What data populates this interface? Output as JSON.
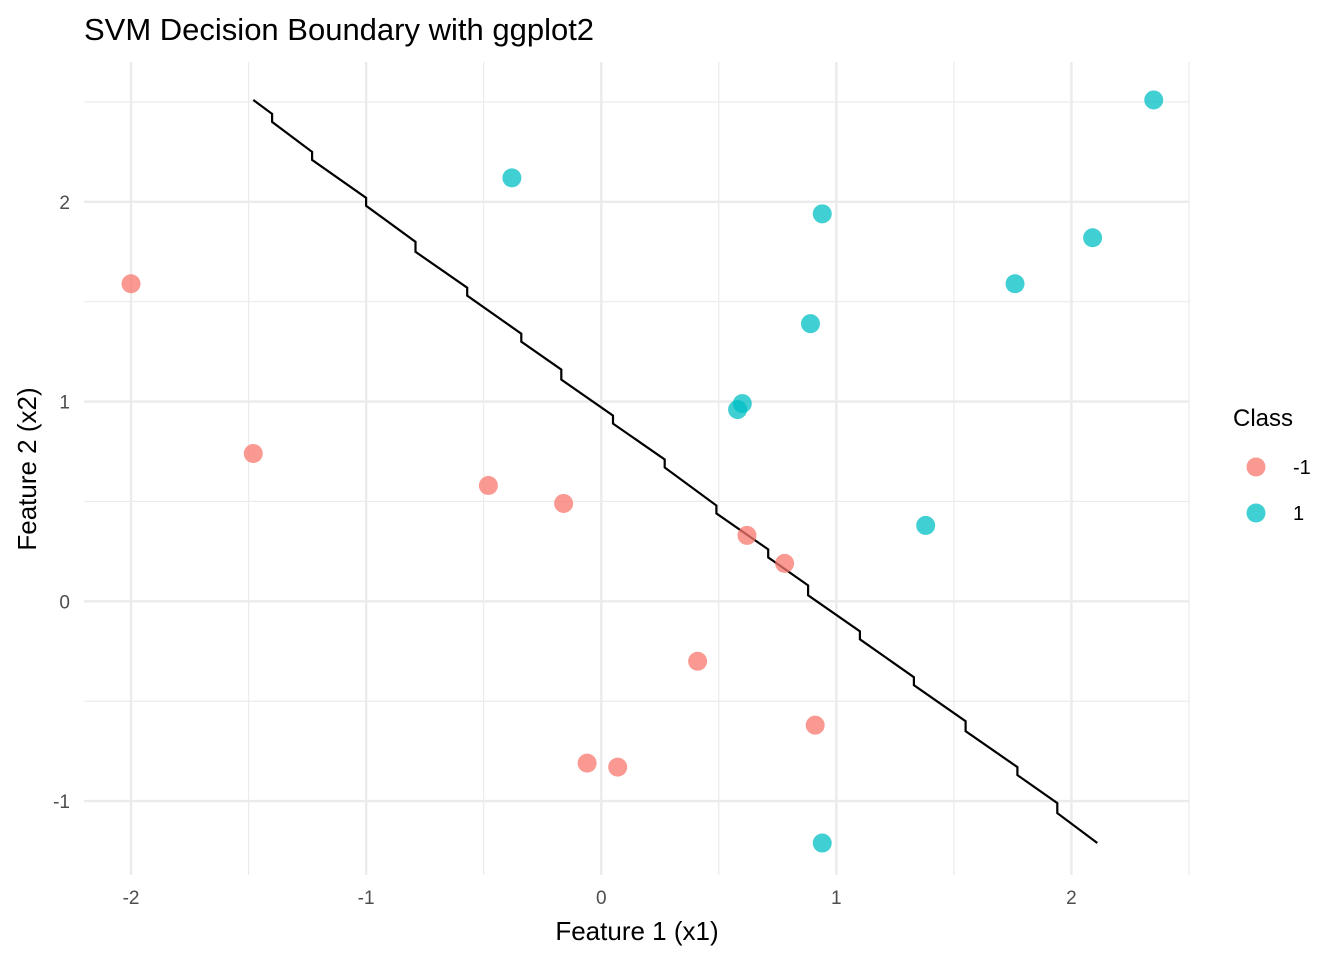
{
  "chart_data": {
    "type": "scatter",
    "title": "SVM Decision Boundary with ggplot2",
    "xlabel": "Feature 1 (x1)",
    "ylabel": "Feature 2 (x2)",
    "xlim": [
      -2.2,
      2.5
    ],
    "ylim": [
      -1.37,
      2.7
    ],
    "x_ticks": [
      -2,
      -1,
      0,
      1,
      2
    ],
    "x_tick_labels": [
      "-2",
      "-1",
      "0",
      "1",
      "2"
    ],
    "y_ticks": [
      -1,
      0,
      1,
      2
    ],
    "y_tick_labels": [
      "-1",
      "0",
      "1",
      "2"
    ],
    "grid": true,
    "legend": {
      "title": "Class",
      "position": "right",
      "entries": [
        {
          "label": "-1",
          "color": "#F8766D"
        },
        {
          "label": "1",
          "color": "#00BFC4"
        }
      ]
    },
    "series": [
      {
        "class": "-1",
        "color": "#F8766D",
        "points": [
          {
            "x": -2.0,
            "y": 1.59
          },
          {
            "x": -1.48,
            "y": 0.74
          },
          {
            "x": -0.48,
            "y": 0.58
          },
          {
            "x": -0.16,
            "y": 0.49
          },
          {
            "x": 0.62,
            "y": 0.33
          },
          {
            "x": 0.78,
            "y": 0.19
          },
          {
            "x": 0.41,
            "y": -0.3
          },
          {
            "x": 0.91,
            "y": -0.62
          },
          {
            "x": -0.06,
            "y": -0.81
          },
          {
            "x": 0.07,
            "y": -0.83
          }
        ]
      },
      {
        "class": "1",
        "color": "#00BFC4",
        "points": [
          {
            "x": 2.35,
            "y": 2.51
          },
          {
            "x": -0.38,
            "y": 2.12
          },
          {
            "x": 0.94,
            "y": 1.94
          },
          {
            "x": 2.09,
            "y": 1.82
          },
          {
            "x": 1.76,
            "y": 1.59
          },
          {
            "x": 0.89,
            "y": 1.39
          },
          {
            "x": 0.6,
            "y": 0.99
          },
          {
            "x": 0.58,
            "y": 0.96
          },
          {
            "x": 1.38,
            "y": 0.38
          },
          {
            "x": 0.94,
            "y": -1.21
          }
        ]
      }
    ],
    "decision_boundary": {
      "color": "#000000",
      "points": [
        {
          "x": -1.48,
          "y": 2.51
        },
        {
          "x": -1.4,
          "y": 2.44
        },
        {
          "x": -1.4,
          "y": 2.4
        },
        {
          "x": -1.23,
          "y": 2.25
        },
        {
          "x": -1.23,
          "y": 2.21
        },
        {
          "x": -1.0,
          "y": 2.02
        },
        {
          "x": -1.0,
          "y": 1.98
        },
        {
          "x": -0.79,
          "y": 1.8
        },
        {
          "x": -0.79,
          "y": 1.75
        },
        {
          "x": -0.57,
          "y": 1.57
        },
        {
          "x": -0.57,
          "y": 1.53
        },
        {
          "x": -0.34,
          "y": 1.34
        },
        {
          "x": -0.34,
          "y": 1.3
        },
        {
          "x": -0.17,
          "y": 1.16
        },
        {
          "x": -0.17,
          "y": 1.11
        },
        {
          "x": 0.05,
          "y": 0.93
        },
        {
          "x": 0.05,
          "y": 0.89
        },
        {
          "x": 0.27,
          "y": 0.71
        },
        {
          "x": 0.27,
          "y": 0.67
        },
        {
          "x": 0.49,
          "y": 0.48
        },
        {
          "x": 0.49,
          "y": 0.44
        },
        {
          "x": 0.71,
          "y": 0.26
        },
        {
          "x": 0.71,
          "y": 0.22
        },
        {
          "x": 0.88,
          "y": 0.08
        },
        {
          "x": 0.88,
          "y": 0.03
        },
        {
          "x": 1.1,
          "y": -0.15
        },
        {
          "x": 1.1,
          "y": -0.19
        },
        {
          "x": 1.33,
          "y": -0.38
        },
        {
          "x": 1.33,
          "y": -0.42
        },
        {
          "x": 1.55,
          "y": -0.6
        },
        {
          "x": 1.55,
          "y": -0.65
        },
        {
          "x": 1.77,
          "y": -0.83
        },
        {
          "x": 1.77,
          "y": -0.87
        },
        {
          "x": 1.94,
          "y": -1.01
        },
        {
          "x": 1.94,
          "y": -1.06
        },
        {
          "x": 2.11,
          "y": -1.21
        }
      ]
    }
  }
}
